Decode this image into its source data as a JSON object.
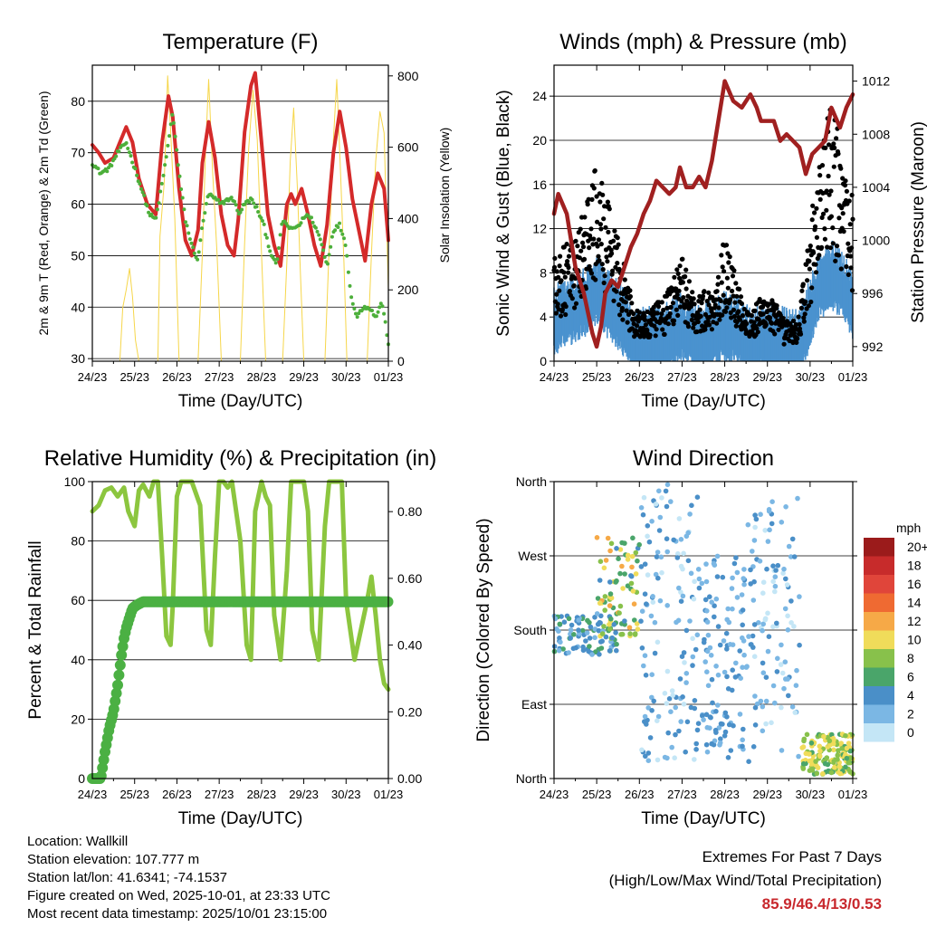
{
  "colors": {
    "temp": "#d42a2a",
    "dew": "#4caf3a",
    "solar": "#f6d64a",
    "gust": "#000000",
    "wind": "#4a92cf",
    "pressure": "#a02020",
    "rh": "#8cc63f",
    "rain": "#4bb043",
    "grid": "#000000"
  },
  "time_ticks": [
    "24/23",
    "25/23",
    "26/23",
    "27/23",
    "28/23",
    "29/23",
    "30/23",
    "01/23"
  ],
  "chart_data": [
    {
      "id": "temperature",
      "type": "line",
      "title": "Temperature (F)",
      "xlabel": "Time (Day/UTC)",
      "ylabel": "2m & 9m T (Red, Orange) & 2m Td (Green)",
      "ylabel_right": "Solar Insolation (Yellow)",
      "xlim": [
        0,
        7
      ],
      "ylim": [
        29.5,
        87
      ],
      "ylim_right": [
        0,
        830
      ],
      "yticks": [
        30,
        40,
        50,
        60,
        70,
        80
      ],
      "yticks_right": [
        0,
        200,
        400,
        600,
        800
      ],
      "series": [
        {
          "name": "2m T",
          "axis": "left",
          "color": "temp",
          "x": [
            0,
            0.15,
            0.3,
            0.5,
            0.65,
            0.8,
            0.95,
            1.1,
            1.3,
            1.5,
            1.65,
            1.8,
            1.9,
            2.05,
            2.2,
            2.35,
            2.5,
            2.6,
            2.75,
            2.9,
            3.05,
            3.2,
            3.35,
            3.45,
            3.6,
            3.75,
            3.85,
            4.0,
            4.15,
            4.3,
            4.45,
            4.6,
            4.7,
            4.8,
            4.95,
            5.1,
            5.25,
            5.4,
            5.55,
            5.7,
            5.85,
            6.0,
            6.15,
            6.3,
            6.45,
            6.6,
            6.75,
            6.9,
            7.0
          ],
          "y": [
            71.5,
            70,
            68,
            69,
            72,
            75,
            72,
            65,
            60,
            58,
            72,
            81,
            77,
            63,
            53,
            50,
            55,
            68,
            76,
            69,
            58,
            52,
            50,
            57,
            74,
            83,
            85.5,
            72,
            58,
            52,
            48,
            60,
            62,
            60,
            63,
            58,
            52,
            48,
            56,
            70,
            78,
            71,
            61,
            55,
            49,
            60,
            66,
            63,
            53
          ]
        },
        {
          "name": "2m Td",
          "axis": "left",
          "color": "dew",
          "x": [
            0,
            0.2,
            0.4,
            0.6,
            0.8,
            1.0,
            1.2,
            1.35,
            1.5,
            1.65,
            1.8,
            1.9,
            2.05,
            2.2,
            2.35,
            2.5,
            2.6,
            2.75,
            2.9,
            3.05,
            3.2,
            3.35,
            3.45,
            3.6,
            3.75,
            3.9,
            4.05,
            4.2,
            4.35,
            4.5,
            4.7,
            4.9,
            5.05,
            5.2,
            5.4,
            5.55,
            5.7,
            5.85,
            6.0,
            6.1,
            6.25,
            6.4,
            6.55,
            6.7,
            6.85,
            7.0
          ],
          "y": [
            68,
            66,
            67,
            70,
            72,
            67,
            62,
            58,
            57,
            64,
            72,
            78,
            66,
            57,
            52,
            49,
            56,
            62,
            61,
            60,
            61,
            61,
            58,
            60,
            61,
            59,
            56,
            51,
            48,
            57,
            55,
            56,
            58,
            57,
            53,
            48,
            55,
            56,
            52,
            43,
            38,
            40,
            40,
            38,
            41,
            33
          ]
        },
        {
          "name": "Solar",
          "axis": "right",
          "color": "solar",
          "x": [
            0.65,
            0.72,
            0.8,
            0.88,
            0.95,
            1.02,
            1.1,
            1.55,
            1.6,
            1.7,
            1.78,
            1.85,
            1.95,
            2.05,
            2.5,
            2.6,
            2.68,
            2.75,
            2.85,
            2.95,
            3.05,
            3.5,
            3.6,
            3.7,
            3.8,
            3.9,
            4.0,
            4.1,
            4.5,
            4.6,
            4.68,
            4.76,
            4.85,
            4.92,
            5.0,
            5.5,
            5.6,
            5.7,
            5.78,
            5.86,
            5.95,
            6.02,
            6.5,
            6.6,
            6.7,
            6.8,
            6.9,
            7.0
          ],
          "y": [
            0,
            150,
            200,
            260,
            180,
            60,
            0,
            0,
            350,
            500,
            800,
            650,
            400,
            0,
            0,
            300,
            600,
            790,
            520,
            300,
            0,
            0,
            330,
            600,
            760,
            620,
            300,
            0,
            0,
            280,
            560,
            710,
            480,
            250,
            0,
            0,
            320,
            620,
            790,
            560,
            280,
            0,
            0,
            300,
            560,
            700,
            640,
            200
          ]
        }
      ]
    },
    {
      "id": "winds",
      "type": "scatter",
      "title": "Winds (mph) & Pressure (mb)",
      "xlabel": "Time (Day/UTC)",
      "ylabel": "Sonic Wind & Gust (Blue, Black)",
      "ylabel_right": "Station Pressure (Maroon)",
      "xlim": [
        0,
        7
      ],
      "ylim": [
        0,
        26.8
      ],
      "ylim_right": [
        990.9,
        1013.2
      ],
      "yticks": [
        0,
        4,
        8,
        12,
        16,
        20,
        24
      ],
      "yticks_right": [
        992,
        996,
        1000,
        1004,
        1008,
        1012
      ],
      "wind_mean": {
        "x": [
          0,
          0.5,
          1.0,
          1.5,
          1.85,
          2.2,
          2.6,
          3.0,
          3.3,
          3.7,
          4.0,
          4.3,
          4.6,
          5.0,
          5.4,
          5.7,
          5.9,
          6.2,
          6.5,
          6.7,
          7.0
        ],
        "y": [
          3.5,
          4.5,
          6.0,
          4.0,
          1.5,
          1.5,
          2.0,
          3.0,
          2.0,
          2.0,
          3.0,
          2.5,
          1.5,
          2.0,
          1.5,
          1.2,
          3.0,
          6.5,
          7.5,
          7.0,
          5.0
        ]
      },
      "gust_mean": {
        "x": [
          0,
          0.5,
          1.0,
          1.5,
          1.85,
          2.2,
          2.6,
          3.0,
          3.3,
          3.7,
          4.0,
          4.3,
          4.6,
          5.0,
          5.4,
          5.7,
          5.9,
          6.2,
          6.5,
          6.7,
          7.0
        ],
        "y": [
          6.5,
          7.5,
          12.0,
          7.5,
          3.5,
          3.0,
          4.0,
          6.5,
          4.0,
          4.5,
          7.5,
          5.0,
          3.0,
          4.5,
          2.5,
          2.5,
          6.0,
          13.0,
          15.5,
          14.0,
          10.0
        ]
      },
      "pressure": {
        "x": [
          0,
          0.1,
          0.3,
          0.5,
          0.7,
          0.9,
          1.0,
          1.1,
          1.2,
          1.35,
          1.5,
          1.65,
          1.8,
          1.95,
          2.1,
          2.25,
          2.4,
          2.55,
          2.7,
          2.85,
          2.95,
          3.1,
          3.25,
          3.4,
          3.55,
          3.7,
          3.85,
          4.0,
          4.2,
          4.4,
          4.6,
          4.75,
          4.85,
          5.0,
          5.15,
          5.3,
          5.45,
          5.6,
          5.75,
          5.9,
          6.05,
          6.2,
          6.35,
          6.5,
          6.7,
          6.85,
          7.0
        ],
        "y": [
          1002,
          1003.5,
          1002,
          998,
          996,
          993,
          992,
          993.5,
          996,
          997,
          996.5,
          998,
          999.5,
          1000.5,
          1002,
          1003,
          1004.5,
          1004,
          1003.5,
          1004,
          1005.5,
          1004,
          1004,
          1004.8,
          1004,
          1006,
          1009,
          1012,
          1010.5,
          1010,
          1011,
          1010,
          1009,
          1009,
          1009,
          1007.5,
          1008,
          1007.5,
          1007,
          1005,
          1006.5,
          1007,
          1007.5,
          1010,
          1008.5,
          1010,
          1011
        ]
      }
    },
    {
      "id": "humidity",
      "type": "line",
      "title": "Relative Humidity (%) & Precipitation (in)",
      "xlabel": "Time (Day/UTC)",
      "ylabel": "Percent & Total Rainfall",
      "xlim": [
        0,
        7
      ],
      "ylim": [
        0,
        100
      ],
      "ylim_right": [
        0,
        0.89
      ],
      "yticks": [
        0,
        20,
        40,
        60,
        80,
        100
      ],
      "yticks_right": [
        0.0,
        0.2,
        0.4,
        0.6,
        0.8
      ],
      "ytick_labels_right": [
        "0.00",
        "0.20",
        "0.40",
        "0.60",
        "0.80"
      ],
      "series": [
        {
          "name": "RH",
          "axis": "left",
          "color": "rh",
          "x": [
            0,
            0.15,
            0.3,
            0.45,
            0.6,
            0.75,
            0.85,
            1.0,
            1.1,
            1.2,
            1.35,
            1.45,
            1.55,
            1.65,
            1.75,
            1.85,
            1.9,
            2.0,
            2.1,
            2.2,
            2.35,
            2.55,
            2.7,
            2.8,
            2.9,
            3.0,
            3.1,
            3.2,
            3.3,
            3.5,
            3.65,
            3.75,
            3.85,
            4.0,
            4.1,
            4.2,
            4.3,
            4.45,
            4.6,
            4.7,
            4.9,
            5.0,
            5.1,
            5.2,
            5.35,
            5.5,
            5.6,
            5.7,
            5.8,
            5.9,
            6.0,
            6.2,
            6.35,
            6.5,
            6.6,
            6.7,
            6.8,
            6.9,
            7.0
          ],
          "y": [
            90,
            92,
            97,
            98,
            95,
            98,
            90,
            85,
            97,
            99,
            95,
            100,
            100,
            75,
            48,
            45,
            58,
            95,
            100,
            100,
            100,
            92,
            50,
            45,
            75,
            100,
            100,
            98,
            100,
            80,
            45,
            40,
            90,
            100,
            95,
            92,
            55,
            40,
            70,
            100,
            100,
            100,
            90,
            50,
            40,
            85,
            100,
            100,
            100,
            100,
            60,
            40,
            50,
            60,
            68,
            55,
            40,
            32,
            30
          ]
        },
        {
          "name": "Total Rainfall",
          "axis": "right",
          "color": "rain",
          "x": [
            0,
            0.2,
            0.3,
            0.4,
            0.5,
            0.6,
            0.7,
            0.75,
            0.8,
            0.85,
            0.95,
            1.05,
            1.2,
            1.5,
            2.0,
            3.0,
            4.0,
            5.0,
            6.0,
            7.0
          ],
          "y": [
            0,
            0,
            0.08,
            0.15,
            0.2,
            0.28,
            0.38,
            0.42,
            0.45,
            0.47,
            0.51,
            0.52,
            0.53,
            0.53,
            0.53,
            0.53,
            0.53,
            0.53,
            0.53,
            0.53
          ]
        }
      ]
    },
    {
      "id": "direction",
      "type": "scatter",
      "title": "Wind Direction",
      "xlabel": "Time (Day/UTC)",
      "ylabel": "Direction (Colored By Speed)",
      "xlim": [
        0,
        7
      ],
      "ylim": [
        0,
        360
      ],
      "yticks": [
        0,
        90,
        180,
        270,
        360
      ],
      "ytick_labels": [
        "North",
        "East",
        "South",
        "West",
        "North"
      ],
      "legend_title": "mph",
      "legend_labels": [
        "20+",
        "18",
        "16",
        "14",
        "12",
        "10",
        "8",
        "6",
        "4",
        "2",
        "0"
      ],
      "legend_colors": [
        "#9b1b1b",
        "#c72b2b",
        "#e0453a",
        "#ef6a32",
        "#f6a947",
        "#f0dc5a",
        "#88c14b",
        "#4aa56a",
        "#4a8fc8",
        "#7bb7e4",
        "#c4e6f6"
      ],
      "clusters": [
        {
          "x": [
            0,
            1.5
          ],
          "y": [
            150,
            200
          ],
          "speed": [
            2,
            6
          ],
          "n": 90
        },
        {
          "x": [
            1.0,
            2.0
          ],
          "y": [
            170,
            300
          ],
          "speed": [
            4,
            12
          ],
          "n": 80
        },
        {
          "x": [
            2.0,
            3.5
          ],
          "y": [
            20,
            360
          ],
          "speed": [
            0,
            5
          ],
          "n": 140
        },
        {
          "x": [
            3.5,
            4.5
          ],
          "y": [
            20,
            270
          ],
          "speed": [
            1,
            5
          ],
          "n": 110
        },
        {
          "x": [
            4.5,
            5.8
          ],
          "y": [
            20,
            340
          ],
          "speed": [
            0,
            4
          ],
          "n": 110
        },
        {
          "x": [
            5.8,
            7.0
          ],
          "y": [
            5,
            55
          ],
          "speed": [
            6,
            11
          ],
          "n": 160
        }
      ]
    }
  ],
  "info": {
    "location": "Location: Wallkill",
    "elevation": "Station elevation: 107.777 m",
    "latlon": "Station lat/lon: 41.6341; -74.1537",
    "created": "Figure created on Wed, 2025-10-01, at 23:33 UTC",
    "recent": "Most recent data timestamp: 2025/10/01 23:15:00"
  },
  "extremes": {
    "title": "Extremes For Past 7 Days",
    "subtitle": "(High/Low/Max Wind/Total Precipitation)",
    "value": "85.9/46.4/13/0.53"
  }
}
